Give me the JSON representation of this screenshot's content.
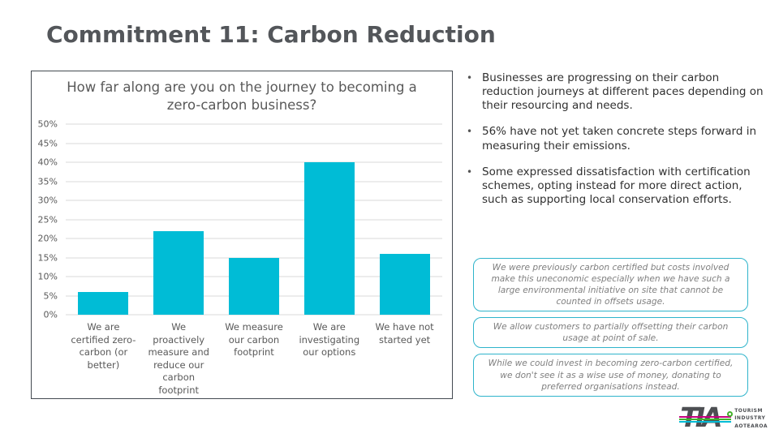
{
  "slide": {
    "title": "Commitment 11: Carbon Reduction"
  },
  "chart_data": {
    "type": "bar",
    "title": "How far along are you on the journey to becoming a zero-carbon business?",
    "categories": [
      "We are certified zero-carbon (or better)",
      "We proactively measure and reduce our carbon footprint",
      "We measure our carbon footprint",
      "We are investigating our options",
      "We have not started yet"
    ],
    "values": [
      6,
      22,
      15,
      40,
      16
    ],
    "unit": "%",
    "ylim": [
      0,
      50
    ],
    "ytick_step": 5,
    "bar_color": "#00BCD6",
    "grid": true,
    "legend": false,
    "xlabel": "",
    "ylabel": ""
  },
  "bullets": [
    "Businesses are progressing on their carbon reduction journeys at different paces depending on their resourcing and needs.",
    "56% have not yet taken concrete steps forward in measuring their emissions.",
    "Some expressed dissatisfaction with certification schemes, opting instead for more direct action, such as supporting local conservation efforts."
  ],
  "quotes": [
    "We were previously carbon certified but costs involved make this uneconomic especially when we have such a large environmental initiative on site that cannot be counted in offsets usage.",
    "We allow customers to partially offsetting their carbon usage at point of sale.",
    "While we could invest in becoming zero-carbon certified, we don't see it as a wise use of money, donating to preferred organisations instead."
  ],
  "logo": {
    "text": "TIA",
    "caption_lines": [
      "TOURISM",
      "INDUSTRY",
      "AOTEAROA"
    ]
  },
  "colors": {
    "accent_cyan": "#00BCD6",
    "quote_border": "#2FB4CB",
    "title_gray": "#53565A",
    "axis_gray": "#595959",
    "gridline_gray": "#d9d9d9",
    "logo_magenta": "#C6007E",
    "logo_green": "#43B02A"
  }
}
